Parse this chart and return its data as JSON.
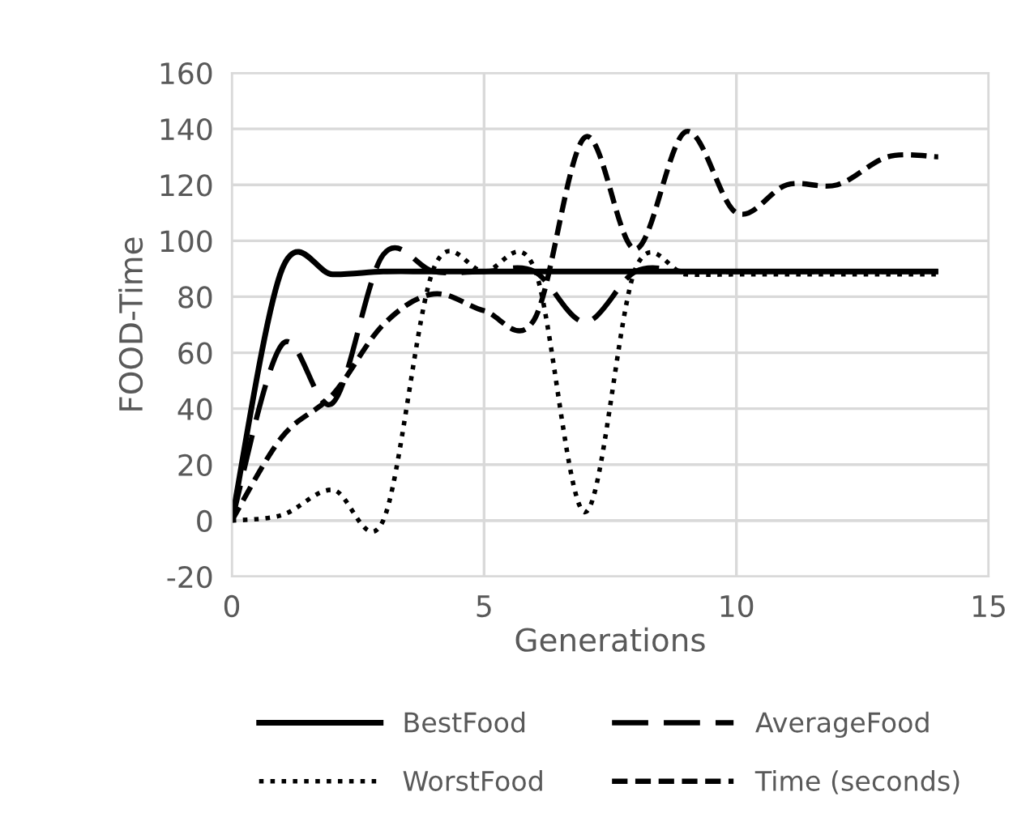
{
  "chart_data": {
    "type": "line",
    "xlabel": "Generations",
    "ylabel": "FOOD-Time",
    "x": [
      0,
      1,
      2,
      3,
      4,
      5,
      6,
      7,
      8,
      9,
      10,
      11,
      12,
      13,
      14
    ],
    "series": [
      {
        "name": "BestFood",
        "color": "#000000",
        "line_style": "solid",
        "values": [
          0,
          90,
          88,
          89,
          89,
          89,
          89,
          89,
          89,
          89,
          89,
          89,
          89,
          89,
          89
        ]
      },
      {
        "name": "WorstFood",
        "color": "#000000",
        "line_style": "dotted",
        "values": [
          0,
          2,
          11,
          0,
          90,
          89,
          90,
          3,
          90,
          88,
          88,
          88,
          88,
          88,
          88
        ]
      },
      {
        "name": "AverageFood",
        "color": "#000000",
        "line_style": "longdash",
        "values": [
          0,
          63,
          42,
          95,
          89,
          89,
          89,
          71,
          89,
          89,
          89,
          89,
          89,
          89,
          89
        ]
      },
      {
        "name": "Time (seconds)",
        "color": "#000000",
        "line_style": "dashed",
        "values": [
          0,
          30,
          45,
          70,
          81,
          75,
          72,
          137,
          97,
          139,
          110,
          120,
          120,
          130,
          130
        ]
      }
    ],
    "xlim": [
      0,
      15
    ],
    "xticks": [
      0,
      5,
      10,
      15
    ],
    "ylim": [
      -20,
      160
    ],
    "yticks": [
      -20,
      0,
      20,
      40,
      60,
      80,
      100,
      120,
      140,
      160
    ],
    "grid": true,
    "legend": "bottom",
    "marker": "none"
  }
}
